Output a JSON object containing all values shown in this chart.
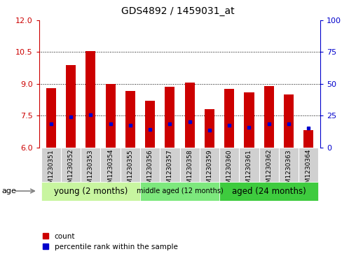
{
  "title": "GDS4892 / 1459031_at",
  "samples": [
    "GSM1230351",
    "GSM1230352",
    "GSM1230353",
    "GSM1230354",
    "GSM1230355",
    "GSM1230356",
    "GSM1230357",
    "GSM1230358",
    "GSM1230359",
    "GSM1230360",
    "GSM1230361",
    "GSM1230362",
    "GSM1230363",
    "GSM1230364"
  ],
  "count_values": [
    8.8,
    9.9,
    10.55,
    9.0,
    8.65,
    8.2,
    8.85,
    9.05,
    7.8,
    8.75,
    8.6,
    8.9,
    8.5,
    6.8
  ],
  "percentile_values": [
    7.1,
    7.45,
    7.55,
    7.1,
    7.05,
    6.85,
    7.1,
    7.2,
    6.8,
    7.05,
    6.95,
    7.1,
    7.1,
    6.9
  ],
  "ylim_left": [
    6,
    12
  ],
  "ylim_right": [
    0,
    100
  ],
  "yticks_left": [
    6,
    7.5,
    9,
    10.5,
    12
  ],
  "yticks_right": [
    0,
    25,
    50,
    75,
    100
  ],
  "groups": [
    {
      "label": "young (2 months)",
      "start": 0,
      "end": 5,
      "color": "#c8f5a0",
      "fontsize": 8.5
    },
    {
      "label": "middle aged (12 months)",
      "start": 5,
      "end": 9,
      "color": "#7de87d",
      "fontsize": 7.0
    },
    {
      "label": "aged (24 months)",
      "start": 9,
      "end": 14,
      "color": "#3ecb3e",
      "fontsize": 8.5
    }
  ],
  "bar_color": "#cc0000",
  "blue_color": "#0000cc",
  "bar_width": 0.5,
  "tick_label_fontsize": 6.5,
  "title_fontsize": 10,
  "left_tick_color": "#cc0000",
  "right_tick_color": "#0000cc",
  "age_label": "age",
  "legend_count": "count",
  "legend_pct": "percentile rank within the sample",
  "sample_box_color": "#d0d0d0",
  "ytick_fontsize": 8
}
